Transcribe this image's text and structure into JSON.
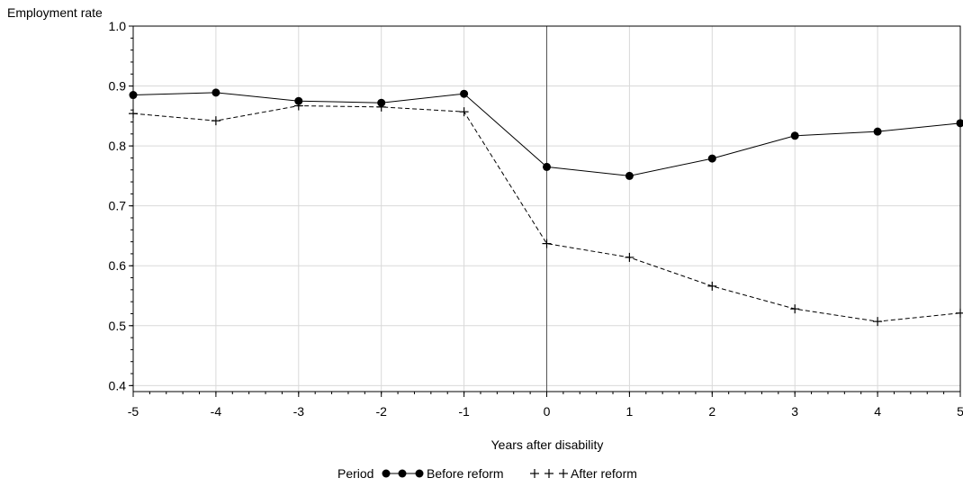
{
  "chart_data": {
    "type": "line",
    "ylabel": "Employment rate",
    "xlabel": "Years after disability",
    "x": [
      -5,
      -4,
      -3,
      -2,
      -1,
      0,
      1,
      2,
      3,
      4,
      5
    ],
    "x_tick_labels": [
      "-5",
      "-4",
      "-3",
      "-2",
      "-1",
      "0",
      "1",
      "2",
      "3",
      "4",
      "5"
    ],
    "y_tick_labels": [
      "0.4",
      "0.5",
      "0.6",
      "0.7",
      "0.8",
      "0.9",
      "1.0"
    ],
    "y_ticks": [
      0.4,
      0.5,
      0.6,
      0.7,
      0.8,
      0.9,
      1.0
    ],
    "xlim": [
      -5,
      5
    ],
    "ylim": [
      0.39,
      1.0
    ],
    "grid": true,
    "reference_line_x": 0,
    "legend_title": "Period",
    "legend_position": "bottom",
    "series": [
      {
        "name": "Before reform",
        "marker": "dot",
        "line_style": "solid",
        "values": [
          0.885,
          0.889,
          0.875,
          0.872,
          0.887,
          0.765,
          0.75,
          0.779,
          0.817,
          0.824,
          0.838
        ]
      },
      {
        "name": "After reform",
        "marker": "plus",
        "line_style": "dashed",
        "values": [
          0.854,
          0.842,
          0.867,
          0.865,
          0.857,
          0.637,
          0.614,
          0.566,
          0.528,
          0.507,
          0.521
        ]
      }
    ],
    "colors": {
      "line": "#000000",
      "grid": "#d9d9d9",
      "axis": "#000000"
    }
  }
}
